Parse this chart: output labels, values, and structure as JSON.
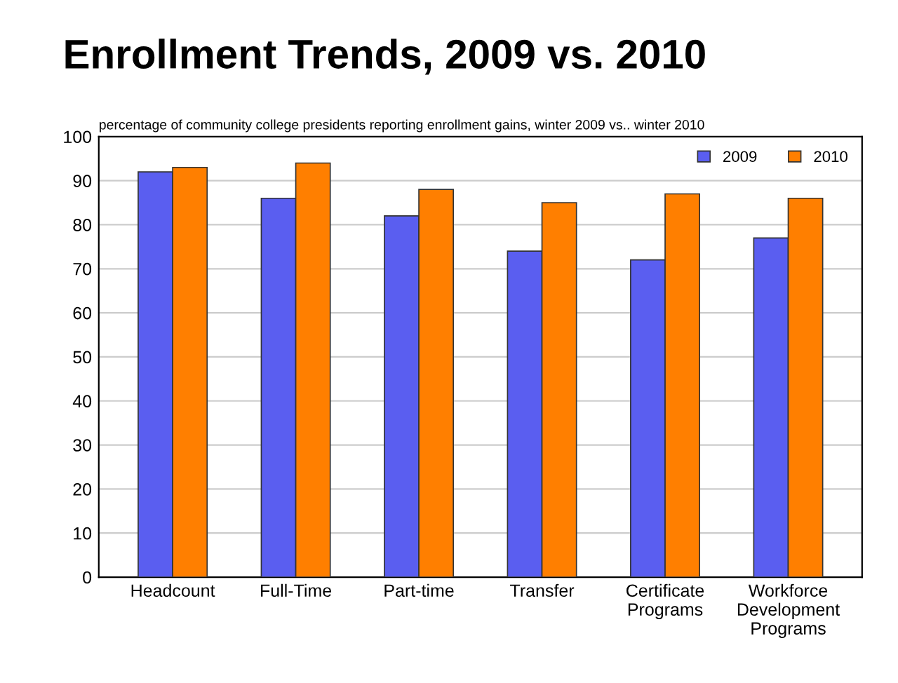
{
  "chart_data": {
    "type": "bar",
    "title": "Enrollment Trends, 2009 vs. 2010",
    "subtitle": "percentage of community college presidents reporting enrollment gains, winter 2009 vs.. winter 2010",
    "categories": [
      "Headcount",
      "Full-Time",
      "Part-time",
      "Transfer",
      "Certificate\nPrograms",
      "Workforce\nDevelopment\nPrograms"
    ],
    "series": [
      {
        "name": "2009",
        "color": "#5a5ef0",
        "values": [
          92,
          86,
          82,
          74,
          72,
          77
        ]
      },
      {
        "name": "2010",
        "color": "#ff7f00",
        "values": [
          93,
          94,
          88,
          85,
          87,
          86
        ]
      }
    ],
    "ylim": [
      0,
      100
    ],
    "yticks": [
      0,
      10,
      20,
      30,
      40,
      50,
      60,
      70,
      80,
      90,
      100
    ],
    "grid": "y",
    "legend": "top right"
  }
}
